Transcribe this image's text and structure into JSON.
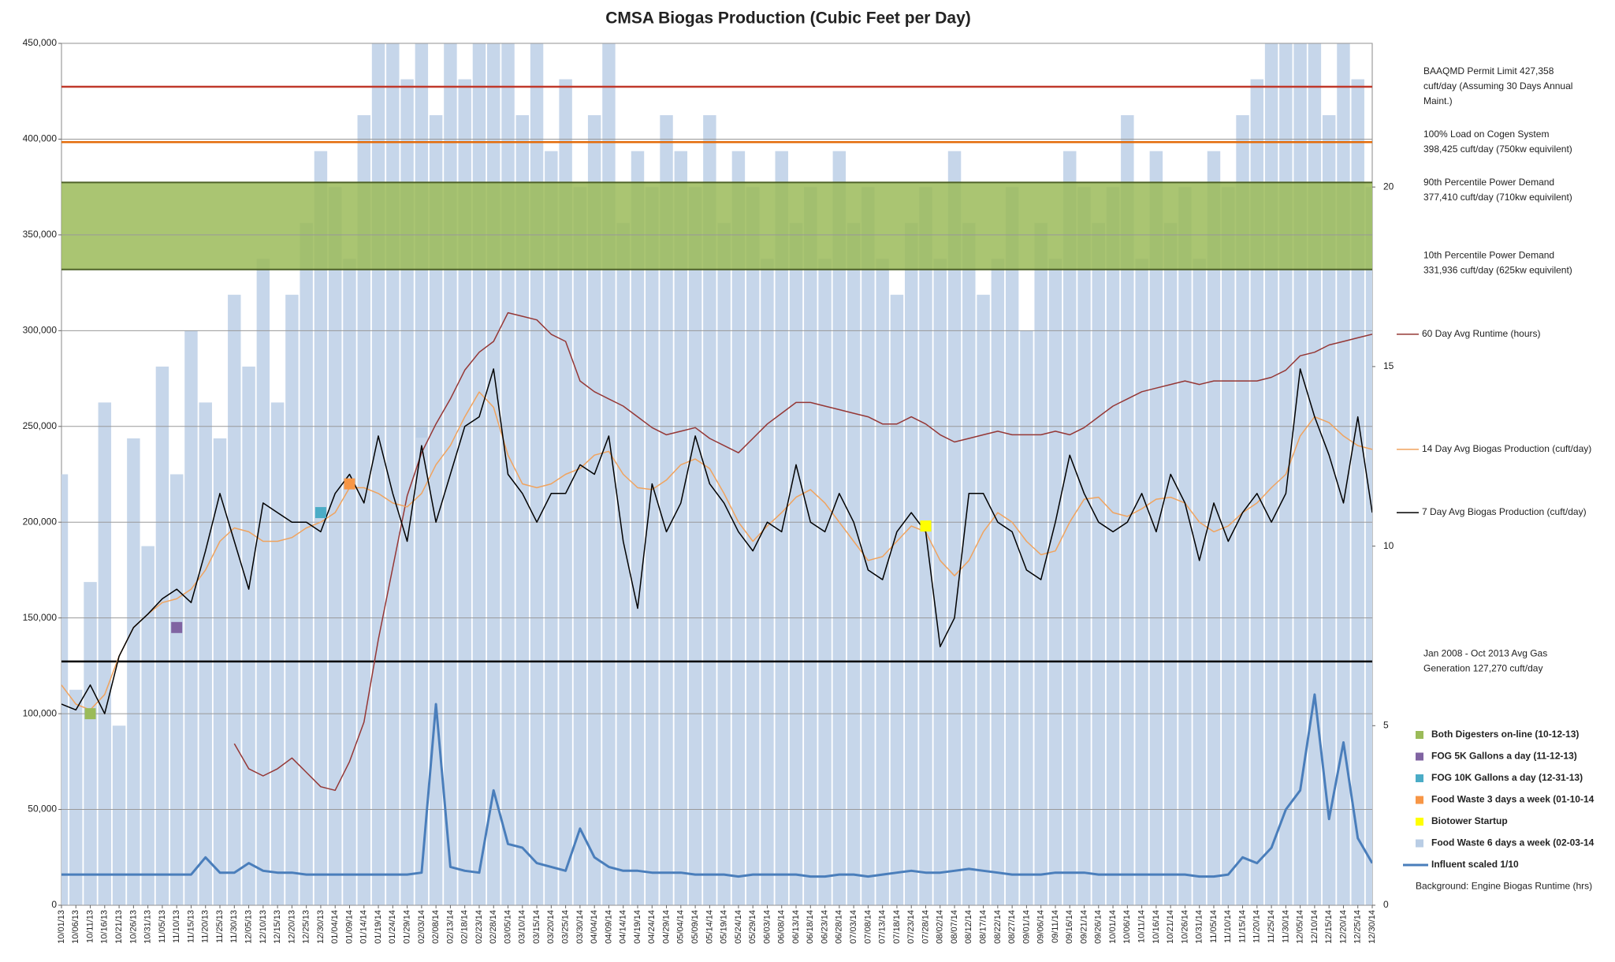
{
  "chart_data": {
    "type": "line",
    "title": "CMSA Biogas Production (Cubic Feet per Day)",
    "categories": [
      "10/01/13",
      "10/06/13",
      "10/11/13",
      "10/16/13",
      "10/21/13",
      "10/26/13",
      "10/31/13",
      "11/05/13",
      "11/10/13",
      "11/15/13",
      "11/20/13",
      "11/25/13",
      "11/30/13",
      "12/05/13",
      "12/10/13",
      "12/15/13",
      "12/20/13",
      "12/25/13",
      "12/30/13",
      "01/04/14",
      "01/09/14",
      "01/14/14",
      "01/19/14",
      "01/24/14",
      "01/29/14",
      "02/03/14",
      "02/08/14",
      "02/13/14",
      "02/18/14",
      "02/23/14",
      "02/28/14",
      "03/05/14",
      "03/10/14",
      "03/15/14",
      "03/20/14",
      "03/25/14",
      "03/30/14",
      "04/04/14",
      "04/09/14",
      "04/14/14",
      "04/19/14",
      "04/24/14",
      "04/29/14",
      "05/04/14",
      "05/09/14",
      "05/14/14",
      "05/19/14",
      "05/24/14",
      "05/29/14",
      "06/03/14",
      "06/08/14",
      "06/13/14",
      "06/18/14",
      "06/23/14",
      "06/28/14",
      "07/03/14",
      "07/08/14",
      "07/13/14",
      "07/18/14",
      "07/23/14",
      "07/28/14",
      "08/02/14",
      "08/07/14",
      "08/12/14",
      "08/17/14",
      "08/22/14",
      "08/27/14",
      "09/01/14",
      "09/06/14",
      "09/11/14",
      "09/16/14",
      "09/21/14",
      "09/26/14",
      "10/01/14",
      "10/06/14",
      "10/11/14",
      "10/16/14",
      "10/21/14",
      "10/26/14",
      "10/31/14",
      "11/05/14",
      "11/10/14",
      "11/15/14",
      "11/20/14",
      "11/25/14",
      "11/30/14",
      "12/05/14",
      "12/10/14",
      "12/15/14",
      "12/20/14",
      "12/25/14",
      "12/30/14"
    ],
    "ylim": [
      0,
      450000
    ],
    "yticks": [
      0,
      {
        "value": 50000,
        "label": "50,000"
      },
      {
        "value": 100000,
        "label": "100,000"
      },
      {
        "value": 150000,
        "label": "150,000"
      },
      {
        "value": 200000,
        "label": "200,000"
      },
      {
        "value": 250000,
        "label": "250,000"
      },
      {
        "value": 300000,
        "label": "300,000"
      },
      {
        "value": 350000,
        "label": "350,000"
      },
      {
        "value": 400000,
        "label": "400,000"
      },
      {
        "value": 450000,
        "label": "450,000"
      }
    ],
    "y2lim": [
      0,
      24
    ],
    "y2ticks": [
      0,
      5,
      10,
      15,
      20
    ],
    "grid": true,
    "series": [
      {
        "name": "Both Digesters on-line (10-12-13)",
        "type": "marker",
        "color": "#9bbb59",
        "x": [
          "10/11/13"
        ],
        "values": [
          100000
        ]
      },
      {
        "name": "FOG 5K Gallons a day (11-12-13)",
        "type": "marker",
        "color": "#8064a2",
        "x": [
          "11/10/13"
        ],
        "values": [
          145000
        ]
      },
      {
        "name": "FOG 10K Gallons a day (12-31-13)",
        "type": "marker",
        "color": "#4bacc6",
        "x": [
          "12/30/13"
        ],
        "values": [
          205000
        ]
      },
      {
        "name": "Food Waste 3 days a week (01-10-14",
        "type": "marker",
        "color": "#f79646",
        "x": [
          "01/09/14"
        ],
        "values": [
          220000
        ]
      },
      {
        "name": "Biotower Startup",
        "type": "marker",
        "color": "#ffff00",
        "x": [
          "07/28/14"
        ],
        "values": [
          198000
        ]
      },
      {
        "name": "Food Waste 6 days a week (02-03-14",
        "type": "marker",
        "color": "#b9cde5",
        "x": [
          "02/03/14"
        ],
        "values": [
          247000
        ]
      },
      {
        "name": "Influent scaled 1/10",
        "type": "line",
        "color": "#4a7ebb",
        "width": 3,
        "values": [
          16000,
          16000,
          16000,
          16000,
          16000,
          16000,
          16000,
          16000,
          16000,
          16000,
          25000,
          17000,
          17000,
          22000,
          18000,
          17000,
          17000,
          16000,
          16000,
          16000,
          16000,
          16000,
          16000,
          16000,
          16000,
          17000,
          105000,
          20000,
          18000,
          17000,
          60000,
          32000,
          30000,
          22000,
          20000,
          18000,
          40000,
          25000,
          20000,
          18000,
          18000,
          17000,
          17000,
          17000,
          16000,
          16000,
          16000,
          15000,
          16000,
          16000,
          16000,
          16000,
          15000,
          15000,
          16000,
          16000,
          15000,
          16000,
          17000,
          18000,
          17000,
          17000,
          18000,
          19000,
          18000,
          17000,
          16000,
          16000,
          16000,
          17000,
          17000,
          17000,
          16000,
          16000,
          16000,
          16000,
          16000,
          16000,
          16000,
          15000,
          15000,
          16000,
          25000,
          22000,
          30000,
          50000,
          60000,
          110000,
          45000,
          85000,
          35000,
          22000
        ]
      },
      {
        "name": "Background: Engine Biogas Runtime (hrs)",
        "type": "bar",
        "axis": "y2",
        "color": "#c6d6ea",
        "values": [
          12,
          6,
          9,
          14,
          5,
          13,
          10,
          15,
          12,
          16,
          14,
          13,
          17,
          15,
          18,
          14,
          17,
          19,
          21,
          20,
          18,
          22,
          24,
          24,
          23,
          24,
          22,
          24,
          23,
          24,
          24,
          24,
          22,
          24,
          21,
          23,
          20,
          22,
          24,
          19,
          21,
          20,
          22,
          21,
          20,
          22,
          19,
          21,
          20,
          18,
          21,
          19,
          20,
          18,
          21,
          19,
          20,
          18,
          17,
          19,
          20,
          18,
          21,
          19,
          17,
          18,
          20,
          16,
          19,
          18,
          21,
          20,
          19,
          20,
          22,
          18,
          21,
          19,
          20,
          18,
          21,
          20,
          22,
          23,
          24,
          24,
          24,
          24,
          22,
          24,
          23,
          20
        ]
      },
      {
        "name": "60 Day Avg Runtime  (hours)",
        "type": "line",
        "axis": "y2",
        "color": "#953735",
        "width": 1.5,
        "end_label": true,
        "values": [
          null,
          null,
          null,
          null,
          null,
          null,
          null,
          null,
          null,
          null,
          null,
          null,
          4.5,
          3.8,
          3.6,
          3.8,
          4.1,
          3.7,
          3.3,
          3.2,
          4.0,
          5.1,
          7.4,
          9.4,
          11.4,
          12.6,
          13.4,
          14.1,
          14.9,
          15.4,
          15.7,
          16.5,
          16.4,
          16.3,
          15.9,
          15.7,
          14.6,
          14.3,
          14.1,
          13.9,
          13.6,
          13.3,
          13.1,
          13.2,
          13.3,
          13.0,
          12.8,
          12.6,
          13.0,
          13.4,
          13.7,
          14.0,
          14.0,
          13.9,
          13.8,
          13.7,
          13.6,
          13.4,
          13.4,
          13.6,
          13.4,
          13.1,
          12.9,
          13.0,
          13.1,
          13.2,
          13.1,
          13.1,
          13.1,
          13.2,
          13.1,
          13.3,
          13.6,
          13.9,
          14.1,
          14.3,
          14.4,
          14.5,
          14.6,
          14.5,
          14.6,
          14.6,
          14.6,
          14.6,
          14.7,
          14.9,
          15.3,
          15.4,
          15.6,
          15.7,
          15.8,
          15.9
        ]
      },
      {
        "name": "14 Day Avg Biogas Production  (cuft/day)",
        "type": "line",
        "color": "#f0a35e",
        "width": 1.5,
        "end_label": true,
        "values": [
          115000,
          105000,
          102000,
          110000,
          130000,
          145000,
          152000,
          158000,
          160000,
          165000,
          175000,
          190000,
          197000,
          195000,
          190000,
          190000,
          192000,
          197000,
          200000,
          205000,
          218000,
          218000,
          215000,
          210000,
          208000,
          215000,
          230000,
          240000,
          255000,
          268000,
          260000,
          235000,
          220000,
          218000,
          220000,
          225000,
          228000,
          235000,
          237000,
          225000,
          218000,
          217000,
          222000,
          230000,
          233000,
          228000,
          215000,
          200000,
          190000,
          198000,
          205000,
          213000,
          217000,
          210000,
          200000,
          190000,
          180000,
          182000,
          190000,
          198000,
          195000,
          180000,
          172000,
          180000,
          195000,
          205000,
          200000,
          190000,
          183000,
          185000,
          200000,
          212000,
          213000,
          205000,
          203000,
          207000,
          212000,
          213000,
          210000,
          200000,
          195000,
          198000,
          205000,
          210000,
          218000,
          225000,
          245000,
          255000,
          252000,
          245000,
          240000,
          238000
        ]
      },
      {
        "name": "7 Day Avg Biogas Production  (cuft/day)",
        "type": "line",
        "color": "#000000",
        "width": 1.5,
        "end_label": true,
        "values": [
          105000,
          102000,
          115000,
          100000,
          130000,
          145000,
          152000,
          160000,
          165000,
          158000,
          185000,
          215000,
          190000,
          165000,
          210000,
          205000,
          200000,
          200000,
          195000,
          215000,
          225000,
          210000,
          245000,
          215000,
          190000,
          240000,
          200000,
          225000,
          250000,
          255000,
          280000,
          225000,
          215000,
          200000,
          215000,
          215000,
          230000,
          225000,
          245000,
          190000,
          155000,
          220000,
          195000,
          210000,
          245000,
          220000,
          210000,
          195000,
          185000,
          200000,
          195000,
          230000,
          200000,
          195000,
          215000,
          200000,
          175000,
          170000,
          195000,
          205000,
          195000,
          135000,
          150000,
          215000,
          215000,
          200000,
          195000,
          175000,
          170000,
          200000,
          235000,
          215000,
          200000,
          195000,
          200000,
          215000,
          195000,
          225000,
          210000,
          180000,
          210000,
          190000,
          205000,
          215000,
          200000,
          215000,
          280000,
          255000,
          235000,
          210000,
          255000,
          205000
        ]
      }
    ],
    "reference_lines": [
      {
        "value": 427358,
        "color": "#c0392b",
        "label_lines": [
          "BAAQMD Permit  Limit 427,358",
          "cuft/day  (Assuming 30 Days Annual",
          "Maint.)"
        ]
      },
      {
        "value": 398425,
        "color": "#e46c0a",
        "label_lines": [
          "100% Load on Cogen System",
          "398,425 cuft/day  (750kw equivilent)"
        ]
      },
      {
        "value": 127270,
        "color": "#000000",
        "label_lines": [
          "Jan 2008 - Oct 2013  Avg Gas",
          "Generation  127,270 cuft/day"
        ]
      }
    ],
    "band": {
      "color": "#9bbb59",
      "edge_color": "#4f6228",
      "lower": 331936,
      "lower_label_lines": [
        "10th Percentile  Power Demand",
        "331,936 cuft/day  (625kw equivilent)"
      ],
      "upper": 377410,
      "upper_label_lines": [
        "90th Percentile  Power Demand",
        "377,410 cuft/day  (710kw equivilent)"
      ]
    }
  }
}
